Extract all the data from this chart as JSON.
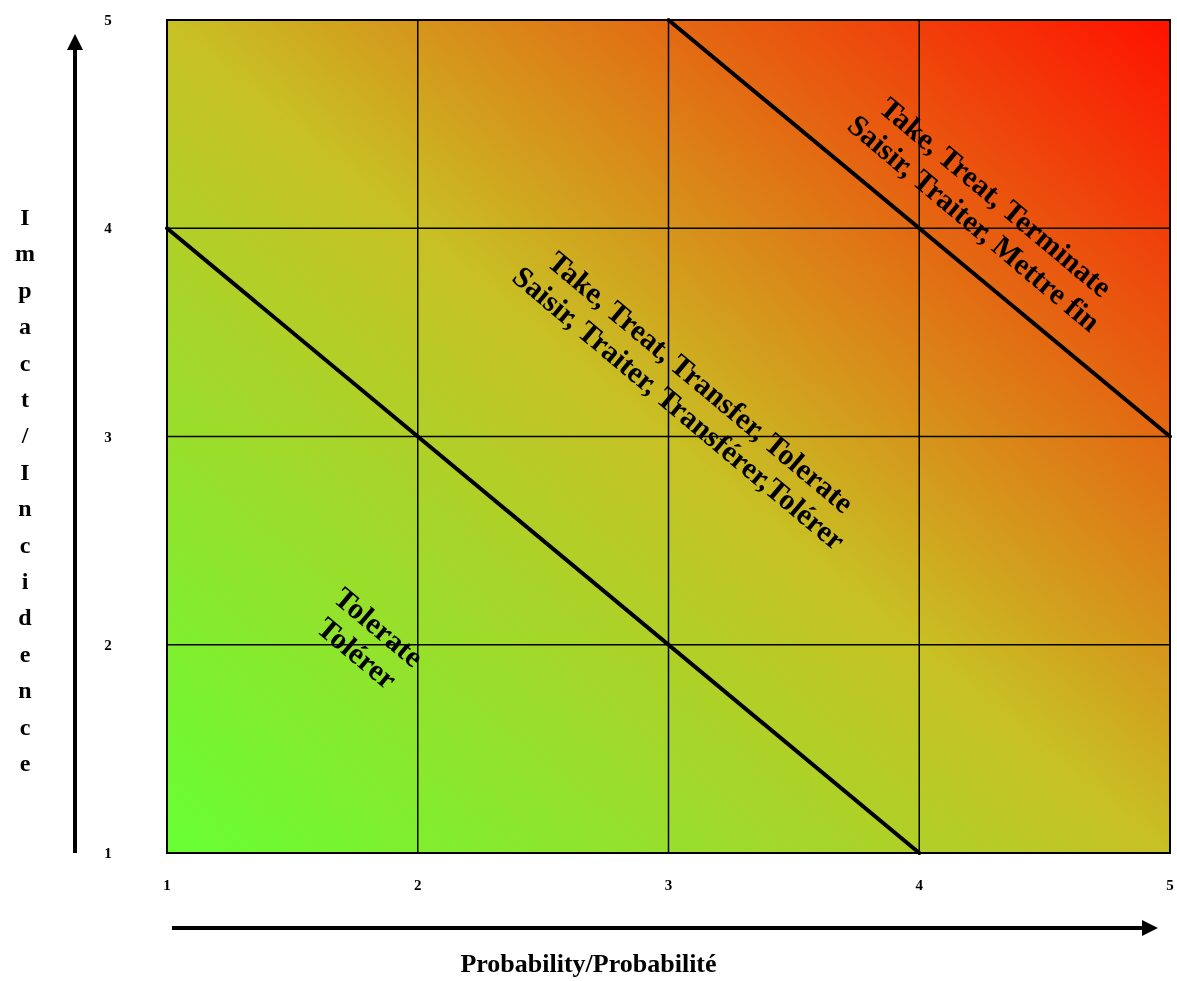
{
  "chart_data": {
    "type": "line",
    "xlabel": "Probability/Probabilité",
    "ylabel": "Impact/Incidence",
    "xlim": [
      1,
      5
    ],
    "ylim": [
      1,
      5
    ],
    "xticks": [
      1,
      2,
      3,
      4,
      5
    ],
    "yticks": [
      1,
      2,
      3,
      4,
      5
    ],
    "grid": true,
    "marker": "none",
    "line_style": "solid",
    "series": [
      {
        "color": "#000000",
        "x": [
          1,
          4
        ],
        "values": [
          4,
          1
        ]
      },
      {
        "color": "#000000",
        "x": [
          3,
          5
        ],
        "values": [
          5,
          3
        ]
      }
    ],
    "annotations": [
      "Take, Treat, Terminate\nSaisir, Traiter, Mettre fin",
      "Take, Treat, Transfer, Tolerate\nSaisir, Traiter, Transférer,Tolérer",
      "Tolerate\nTolérer"
    ]
  }
}
